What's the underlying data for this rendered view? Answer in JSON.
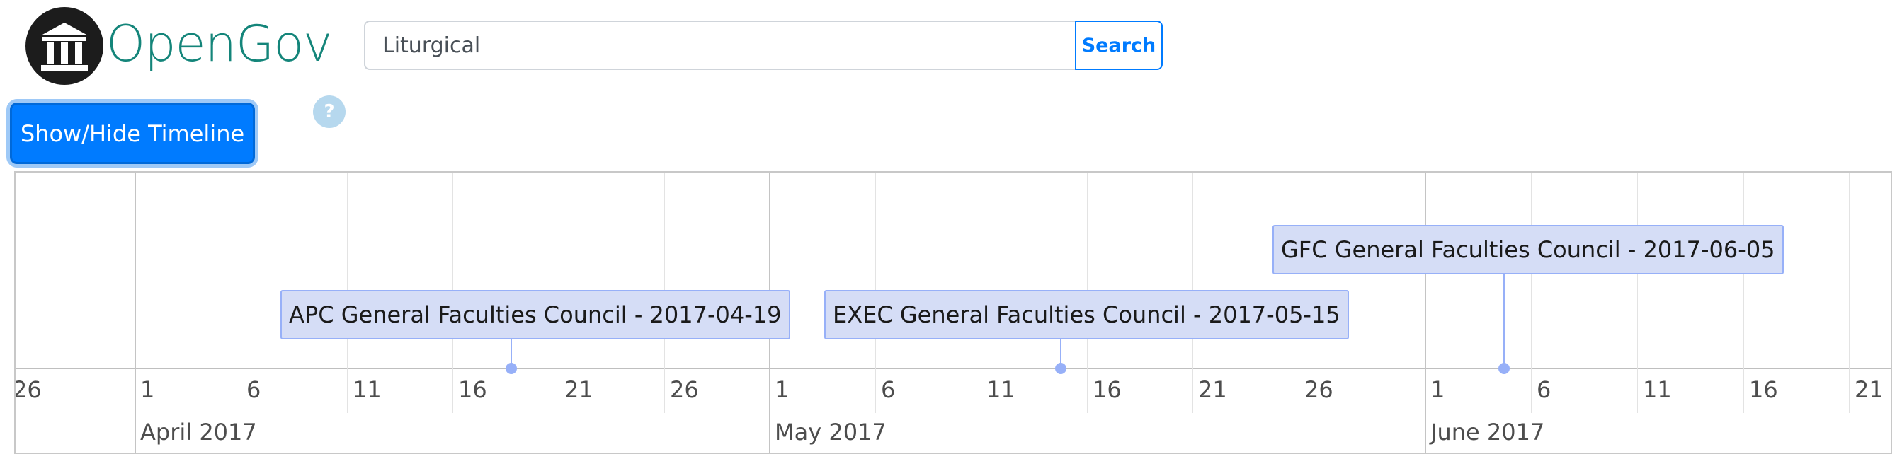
{
  "header": {
    "brand": "OpenGov",
    "logo_icon": "institution-columns-icon"
  },
  "search": {
    "value": "Liturgical",
    "button_label": "Search"
  },
  "toolbar": {
    "toggle_label": "Show/Hide Timeline",
    "help_label": "?"
  },
  "timeline": {
    "minor_ticks": [
      {
        "label": "26"
      },
      {
        "label": "1"
      },
      {
        "label": "6"
      },
      {
        "label": "11"
      },
      {
        "label": "16"
      },
      {
        "label": "21"
      },
      {
        "label": "26"
      },
      {
        "label": "1"
      },
      {
        "label": "6"
      },
      {
        "label": "11"
      },
      {
        "label": "16"
      },
      {
        "label": "21"
      },
      {
        "label": "26"
      },
      {
        "label": "1"
      },
      {
        "label": "6"
      },
      {
        "label": "11"
      },
      {
        "label": "16"
      },
      {
        "label": "21"
      }
    ],
    "months": [
      {
        "label": "April 2017"
      },
      {
        "label": "May 2017"
      },
      {
        "label": "June 2017"
      }
    ],
    "events": [
      {
        "label": "APC General Faculties Council - 2017-04-19",
        "date": "2017-04-19"
      },
      {
        "label": "EXEC General Faculties Council - 2017-05-15",
        "date": "2017-05-15"
      },
      {
        "label": "GFC General Faculties Council - 2017-06-05",
        "date": "2017-06-05"
      }
    ],
    "colors": {
      "event_fill": "#d5ddf6",
      "event_border": "#97b0f8"
    }
  }
}
